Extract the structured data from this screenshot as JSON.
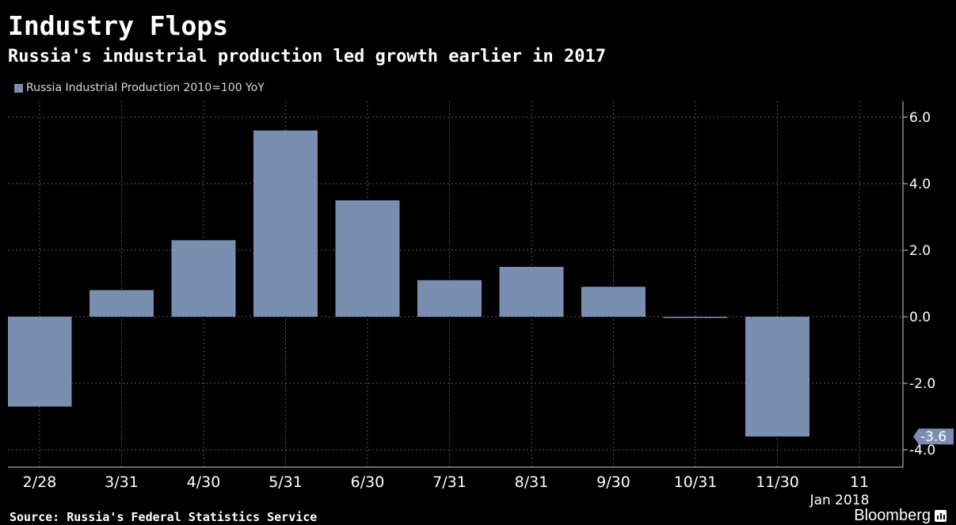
{
  "header": {
    "title": "Industry Flops",
    "subtitle": "Russia's industrial production led growth earlier in 2017"
  },
  "legend": {
    "label": "Russia Industrial Production 2010=100 YoY"
  },
  "footer": {
    "source": "Source: Russia's Federal Statistics Service",
    "brand": "Bloomberg"
  },
  "chart_data": {
    "type": "bar",
    "categories": [
      "2/28",
      "3/31",
      "4/30",
      "5/31",
      "6/30",
      "7/31",
      "8/31",
      "9/30",
      "10/31",
      "11/30",
      "11"
    ],
    "x_sublabels": [
      "",
      "",
      "",
      "",
      "",
      "",
      "",
      "",
      "",
      "",
      "Jan 2018"
    ],
    "values": [
      -2.7,
      0.8,
      2.3,
      5.6,
      3.5,
      1.1,
      1.5,
      0.9,
      0.0,
      -3.6,
      null
    ],
    "series": [
      {
        "name": "Russia Industrial Production 2010=100 YoY",
        "values": [
          -2.7,
          0.8,
          2.3,
          5.6,
          3.5,
          1.1,
          1.5,
          0.9,
          0.0,
          -3.6,
          null
        ]
      }
    ],
    "yticks": [
      "6.0",
      "4.0",
      "2.0",
      "0.0",
      "-2.0",
      "-4.0"
    ],
    "ylim": [
      -4.4,
      6.6
    ],
    "y_axis_position": "right",
    "last_value_label": "-3.6",
    "grid": true,
    "legend_position": "top-left",
    "colors": {
      "bar": "#7a8fb0",
      "background": "#000000",
      "grid": "#5a5a5a",
      "axis": "#cfcfcf",
      "text": "#ffffff"
    }
  }
}
